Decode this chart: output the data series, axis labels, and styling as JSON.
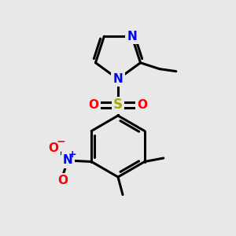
{
  "background_color": "#e8e8e8",
  "bond_color": "#000000",
  "bond_width": 2.2,
  "atom_colors": {
    "N": "#0000ff",
    "O": "#ff0000",
    "S": "#aaaa00",
    "C": "#000000"
  },
  "font_size_atom": 11,
  "fig_size": [
    3.0,
    3.0
  ],
  "dpi": 100,
  "xlim": [
    0,
    10
  ],
  "ylim": [
    0,
    10
  ]
}
